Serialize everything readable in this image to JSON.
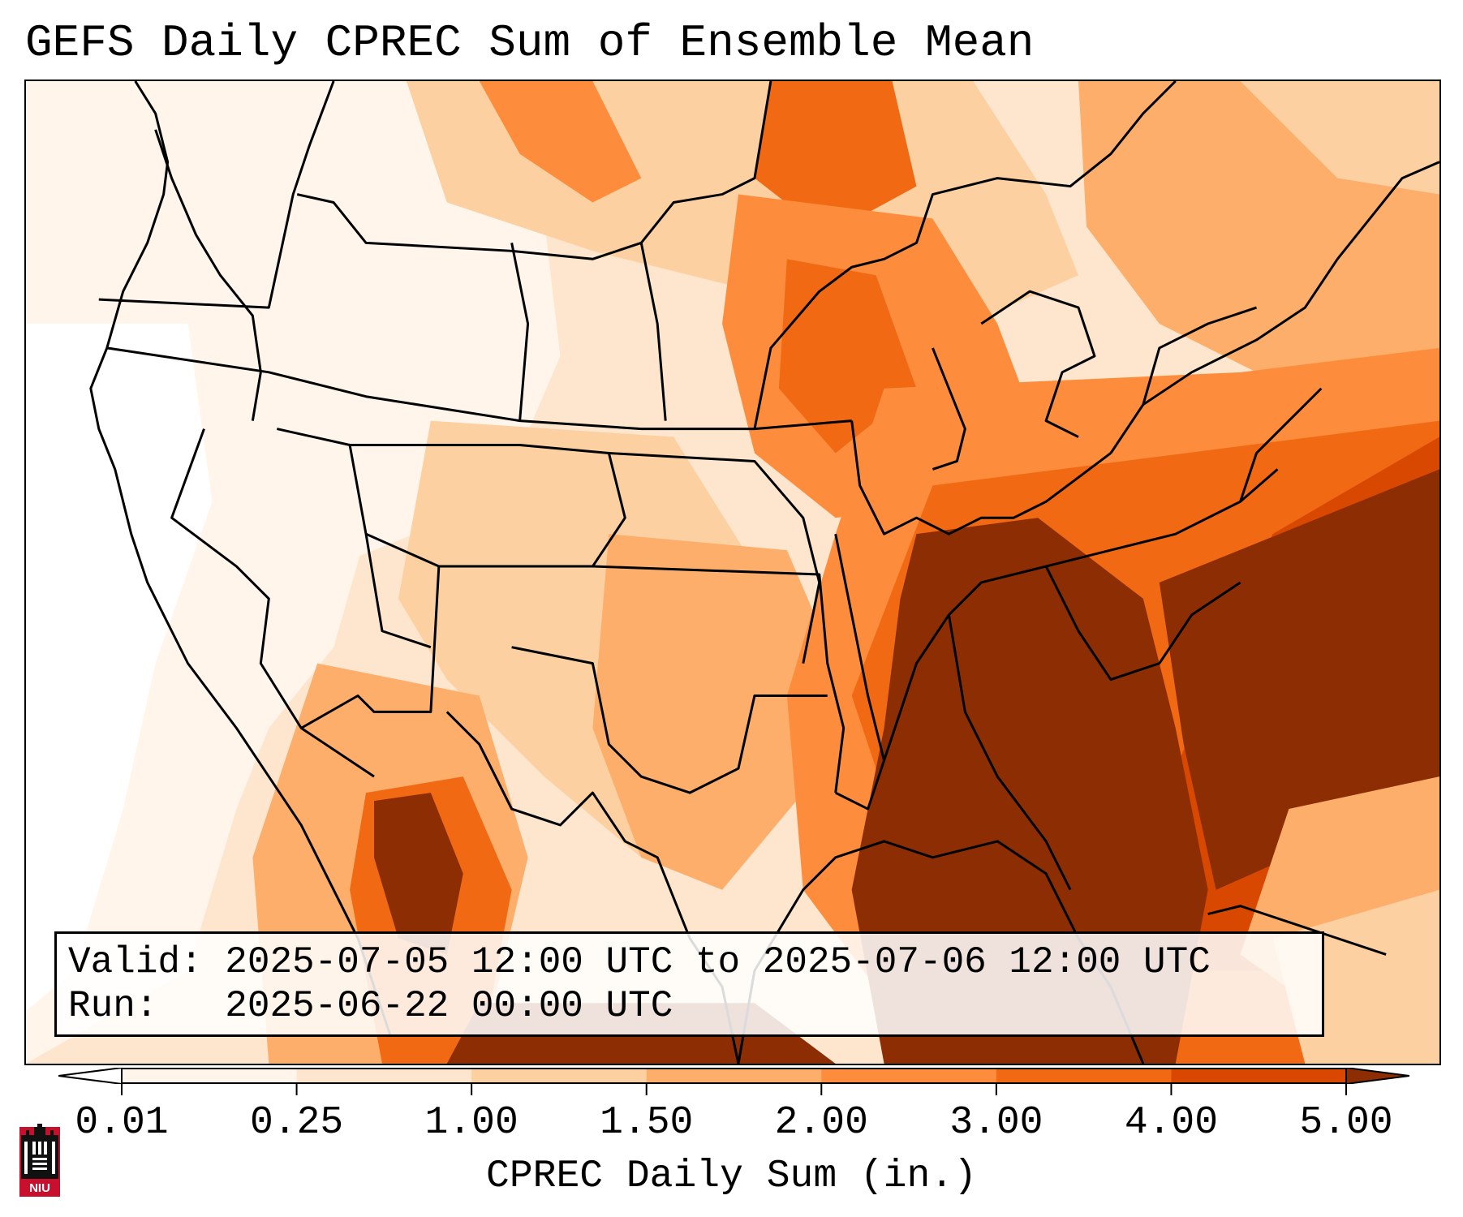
{
  "title": "GEFS Daily CPREC Sum of Ensemble Mean",
  "info": {
    "valid_line": "Valid: 2025-07-05 12:00 UTC to 2025-07-06 12:00 UTC",
    "run_line": "Run:   2025-06-22 00:00 UTC"
  },
  "colorbar": {
    "label": "CPREC Daily Sum (in.)",
    "ticks": [
      "0.01",
      "0.25",
      "1.00",
      "1.50",
      "2.00",
      "3.00",
      "4.00",
      "5.00"
    ],
    "colors": [
      "#fff5eb",
      "#fee6ce",
      "#fdd0a2",
      "#fdae6b",
      "#fd8d3c",
      "#f16913",
      "#d94801",
      "#8c2d04"
    ],
    "under_color": "#ffffff",
    "over_color": "#8c2d04"
  },
  "logo": {
    "text": "NIU",
    "icon": "niu-castle-logo-icon",
    "colors": {
      "red": "#c8102e",
      "black": "#111111"
    }
  },
  "map": {
    "region": "Continental United States",
    "field": "convective precipitation daily sum",
    "boundary_color": "#000000"
  }
}
